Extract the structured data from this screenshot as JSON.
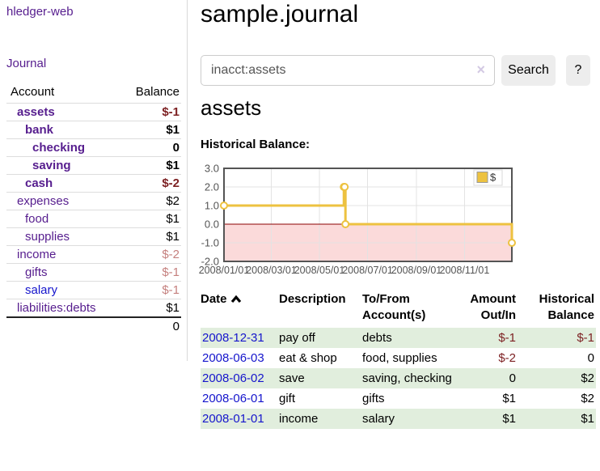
{
  "app": {
    "brand": "hledger-web"
  },
  "sidebar": {
    "journal_label": "Journal",
    "accounts_table": {
      "headers": [
        "Account",
        "Balance"
      ],
      "rows": [
        {
          "name": "assets",
          "balance": "$-1",
          "depth": 1,
          "bold": true
        },
        {
          "name": "bank",
          "balance": "$1",
          "depth": 2,
          "bold": true
        },
        {
          "name": "checking",
          "balance": "0",
          "depth": 3,
          "bold": true
        },
        {
          "name": "saving",
          "balance": "$1",
          "depth": 3,
          "bold": true
        },
        {
          "name": "cash",
          "balance": "$-2",
          "depth": 2,
          "bold": true
        },
        {
          "name": "expenses",
          "balance": "$2",
          "depth": 1,
          "bold": false
        },
        {
          "name": "food",
          "balance": "$1",
          "depth": 2,
          "bold": false
        },
        {
          "name": "supplies",
          "balance": "$1",
          "depth": 2,
          "bold": false
        },
        {
          "name": "income",
          "balance": "$-2",
          "depth": 1,
          "bold": false
        },
        {
          "name": "gifts",
          "balance": "$-1",
          "depth": 2,
          "bold": false
        },
        {
          "name": "salary",
          "balance": "$-1",
          "depth": 2,
          "bold": false,
          "unvisited": true
        },
        {
          "name": "liabilities:debts",
          "balance": "$1",
          "depth": 1,
          "bold": false
        }
      ],
      "total": "0"
    }
  },
  "main": {
    "title": "sample.journal",
    "search": {
      "value": "inacct:assets",
      "clear_icon": "×",
      "button_label": "Search",
      "help_label": "?"
    },
    "account_heading": "assets",
    "chart_label": "Historical Balance:"
  },
  "chart_data": {
    "type": "line",
    "step": true,
    "title": "Historical Balance",
    "series": [
      {
        "name": "$",
        "color": "#edc240",
        "points": [
          {
            "x": "2008-01-01",
            "y": 1
          },
          {
            "x": "2008-06-01",
            "y": 2
          },
          {
            "x": "2008-06-02",
            "y": 2
          },
          {
            "x": "2008-06-03",
            "y": 0
          },
          {
            "x": "2008-12-31",
            "y": -1
          }
        ]
      }
    ],
    "x_range": [
      "2008-01-01",
      "2008-12-31"
    ],
    "x_tick_dates": [
      "2008-01-01",
      "2008-03-01",
      "2008-05-01",
      "2008-07-01",
      "2008-09-01",
      "2008-11-01"
    ],
    "x_tick_labels": [
      "2008/01/01",
      "2008/03/01",
      "2008/05/01",
      "2008/07/01",
      "2008/09/01",
      "2008/11/01"
    ],
    "y_ticks": [
      3.0,
      2.0,
      1.0,
      0.0,
      -1.0,
      -2.0
    ],
    "ylim": [
      -2,
      3
    ],
    "grid": true,
    "legend_position": "top-right",
    "negative_region_color": "#fbdada",
    "zero_line_color": "#8b0000"
  },
  "transactions": {
    "headers": {
      "date": "Date",
      "description": "Description",
      "tofrom": [
        "To/From",
        "Account(s)"
      ],
      "amount": [
        "Amount",
        "Out/In"
      ],
      "balance": [
        "Historical",
        "Balance"
      ]
    },
    "rows": [
      {
        "date": "2008-12-31",
        "description": "pay off",
        "accounts": "debts",
        "amount": "$-1",
        "balance": "$-1"
      },
      {
        "date": "2008-06-03",
        "description": "eat & shop",
        "accounts": "food, supplies",
        "amount": "$-2",
        "balance": "0"
      },
      {
        "date": "2008-06-02",
        "description": "save",
        "accounts": "saving, checking",
        "amount": "0",
        "balance": "$2"
      },
      {
        "date": "2008-06-01",
        "description": "gift",
        "accounts": "gifts",
        "amount": "$1",
        "balance": "$2"
      },
      {
        "date": "2008-01-01",
        "description": "income",
        "accounts": "salary",
        "amount": "$1",
        "balance": "$1"
      }
    ]
  },
  "colors": {
    "link_purple": "#561d8e",
    "link_blue": "#1515cc",
    "negative_strong": "#7d2123",
    "negative_soft": "#c5807e",
    "row_stripe_green": "#e1eedd",
    "series_gold": "#edc240",
    "negative_region_pink": "#fbdada",
    "zero_line_red": "#8b0000",
    "chart_border_gray": "#545454",
    "button_gray": "#ededed"
  }
}
